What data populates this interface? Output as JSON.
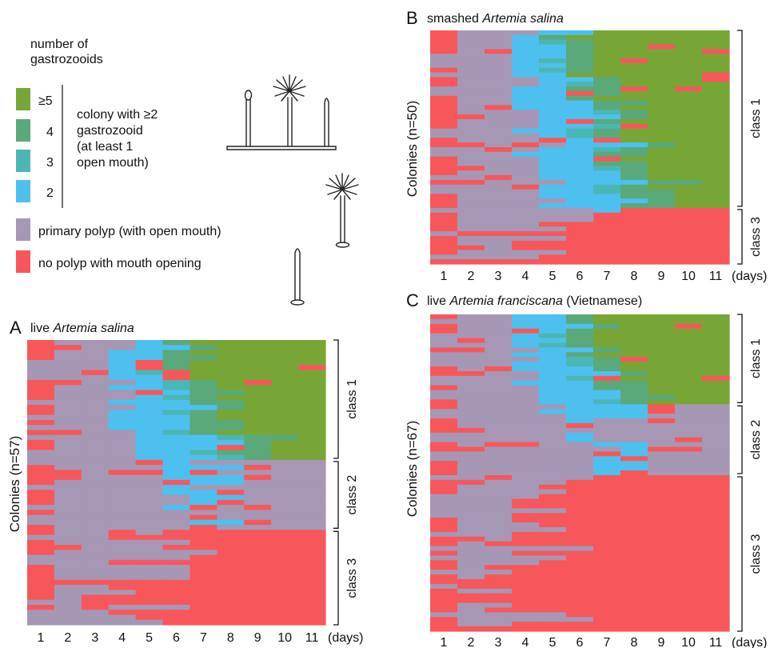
{
  "legend": {
    "title_line1": "number of",
    "title_line2": "gastrozooids",
    "items": [
      {
        "label": "≥5",
        "color": "#78a636"
      },
      {
        "label": "4",
        "color": "#5aa97b"
      },
      {
        "label": "3",
        "color": "#4bb7b4"
      },
      {
        "label": "2",
        "color": "#4dc0ef"
      }
    ],
    "colony_note": [
      "colony with ≥2",
      "gastrozooid",
      "(at least 1",
      "open mouth)"
    ],
    "primary": {
      "label": "primary polyp (with open mouth)",
      "color": "#a697b5"
    },
    "none": {
      "label": "no polyp with mouth opening",
      "color": "#f7575b"
    }
  },
  "chart_data": [
    {
      "type": "heatmap",
      "panel": "A",
      "title_prefix": "live ",
      "title_italic": "Artemia salina",
      "title_suffix": "",
      "ylabel": "Colonies (n=57)",
      "x_unit": "(days)",
      "x": [
        1,
        2,
        3,
        4,
        5,
        6,
        7,
        8,
        9,
        10,
        11
      ],
      "n_rows": 57,
      "classes": [
        {
          "name": "class 1",
          "rows": [
            0,
            24
          ]
        },
        {
          "name": "class 2",
          "rows": [
            24,
            38
          ]
        },
        {
          "name": "class 3",
          "rows": [
            38,
            57
          ]
        }
      ]
    },
    {
      "type": "heatmap",
      "panel": "B",
      "title_prefix": "smashed ",
      "title_italic": "Artemia salina",
      "title_suffix": "",
      "ylabel": "Colonies (n=50)",
      "x_unit": "(days)",
      "x": [
        1,
        2,
        3,
        4,
        5,
        6,
        7,
        8,
        9,
        10,
        11
      ],
      "n_rows": 50,
      "classes": [
        {
          "name": "class 1",
          "rows": [
            0,
            38
          ]
        },
        {
          "name": "class 3",
          "rows": [
            38,
            50
          ]
        }
      ]
    },
    {
      "type": "heatmap",
      "panel": "C",
      "title_prefix": "live ",
      "title_italic": "Artemia franciscana",
      "title_suffix": " (Vietnamese)",
      "ylabel": "Colonies (n=67)",
      "x_unit": "(days)",
      "x": [
        1,
        2,
        3,
        4,
        5,
        6,
        7,
        8,
        9,
        10,
        11
      ],
      "n_rows": 67,
      "classes": [
        {
          "name": "class 1",
          "rows": [
            0,
            19
          ]
        },
        {
          "name": "class 2",
          "rows": [
            19,
            34
          ]
        },
        {
          "name": "class 3",
          "rows": [
            34,
            67
          ]
        }
      ]
    }
  ]
}
